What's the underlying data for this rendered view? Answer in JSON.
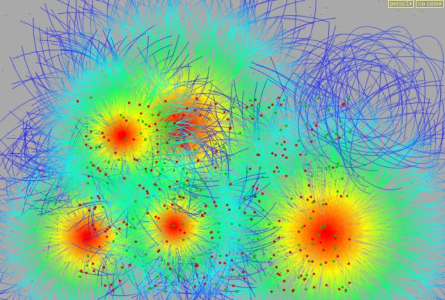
{
  "viewport": {
    "camera_menu": "persp1▾",
    "cam_menu": "no cam▾",
    "background_color": "#a9a9a9",
    "overlay_color": "#e8e860",
    "streamline_colors": [
      "#ff0000",
      "#ffff00",
      "#00ff80",
      "#00ffff",
      "#0000ff"
    ],
    "particle_colors": [
      "#e00000",
      "#00c000"
    ]
  }
}
